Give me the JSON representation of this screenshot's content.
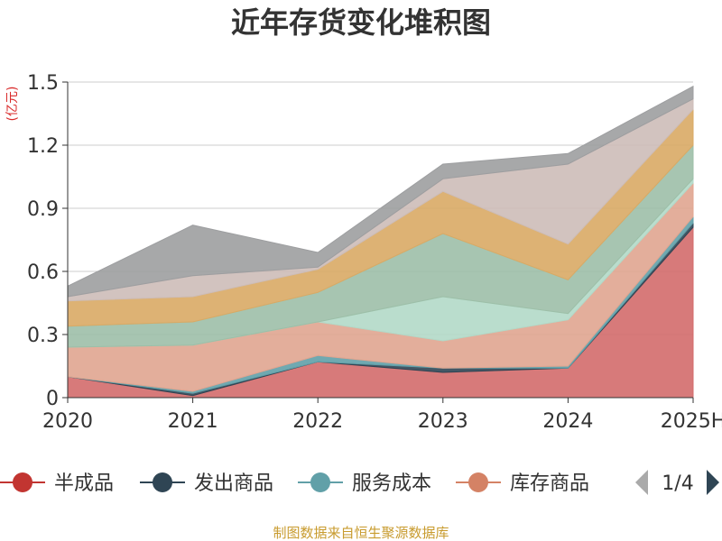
{
  "chart_data": {
    "type": "area",
    "title": "近年存货变化堆积图",
    "ylabel": "(亿元)",
    "xlabel": "",
    "categories": [
      "2020",
      "2021",
      "2022",
      "2023",
      "2024",
      "2025H"
    ],
    "yticks": [
      "0",
      "0.3",
      "0.6",
      "0.9",
      "1.2",
      "1.5"
    ],
    "ylim": [
      0,
      1.5
    ],
    "grid": true,
    "stacked": true,
    "series": [
      {
        "name": "半成品",
        "color": "#d36b6b",
        "values": [
          0.1,
          0.01,
          0.17,
          0.12,
          0.14,
          0.81
        ]
      },
      {
        "name": "发出商品",
        "color": "#2f4554",
        "values": [
          0.0,
          0.01,
          0.0,
          0.02,
          0.0,
          0.02
        ]
      },
      {
        "name": "服务成本",
        "color": "#61a0a8",
        "values": [
          0.0,
          0.01,
          0.03,
          0.0,
          0.01,
          0.03
        ]
      },
      {
        "name": "库存商品",
        "color": "#e0a590",
        "values": [
          0.14,
          0.22,
          0.16,
          0.13,
          0.22,
          0.16
        ]
      },
      {
        "name": "",
        "color": "#b2d9c8",
        "values": [
          0.0,
          0.0,
          0.0,
          0.21,
          0.03,
          0.02
        ]
      },
      {
        "name": "",
        "color": "#9dbfa8",
        "values": [
          0.1,
          0.11,
          0.14,
          0.3,
          0.16,
          0.16
        ]
      },
      {
        "name": "",
        "color": "#d9aa65",
        "values": [
          0.12,
          0.12,
          0.11,
          0.2,
          0.17,
          0.17
        ]
      },
      {
        "name": "",
        "color": "#cdbdb8",
        "values": [
          0.02,
          0.1,
          0.01,
          0.06,
          0.38,
          0.05
        ]
      },
      {
        "name": "",
        "color": "#9d9ea0",
        "values": [
          0.05,
          0.24,
          0.07,
          0.07,
          0.05,
          0.06
        ]
      }
    ]
  },
  "legend": {
    "items": [
      {
        "label": "半成品",
        "color": "#c23531"
      },
      {
        "label": "发出商品",
        "color": "#2f4554"
      },
      {
        "label": "服务成本",
        "color": "#61a0a8"
      },
      {
        "label": "库存商品",
        "color": "#d48265"
      }
    ],
    "page": "1/4"
  },
  "source": "制图数据来自恒生聚源数据库"
}
